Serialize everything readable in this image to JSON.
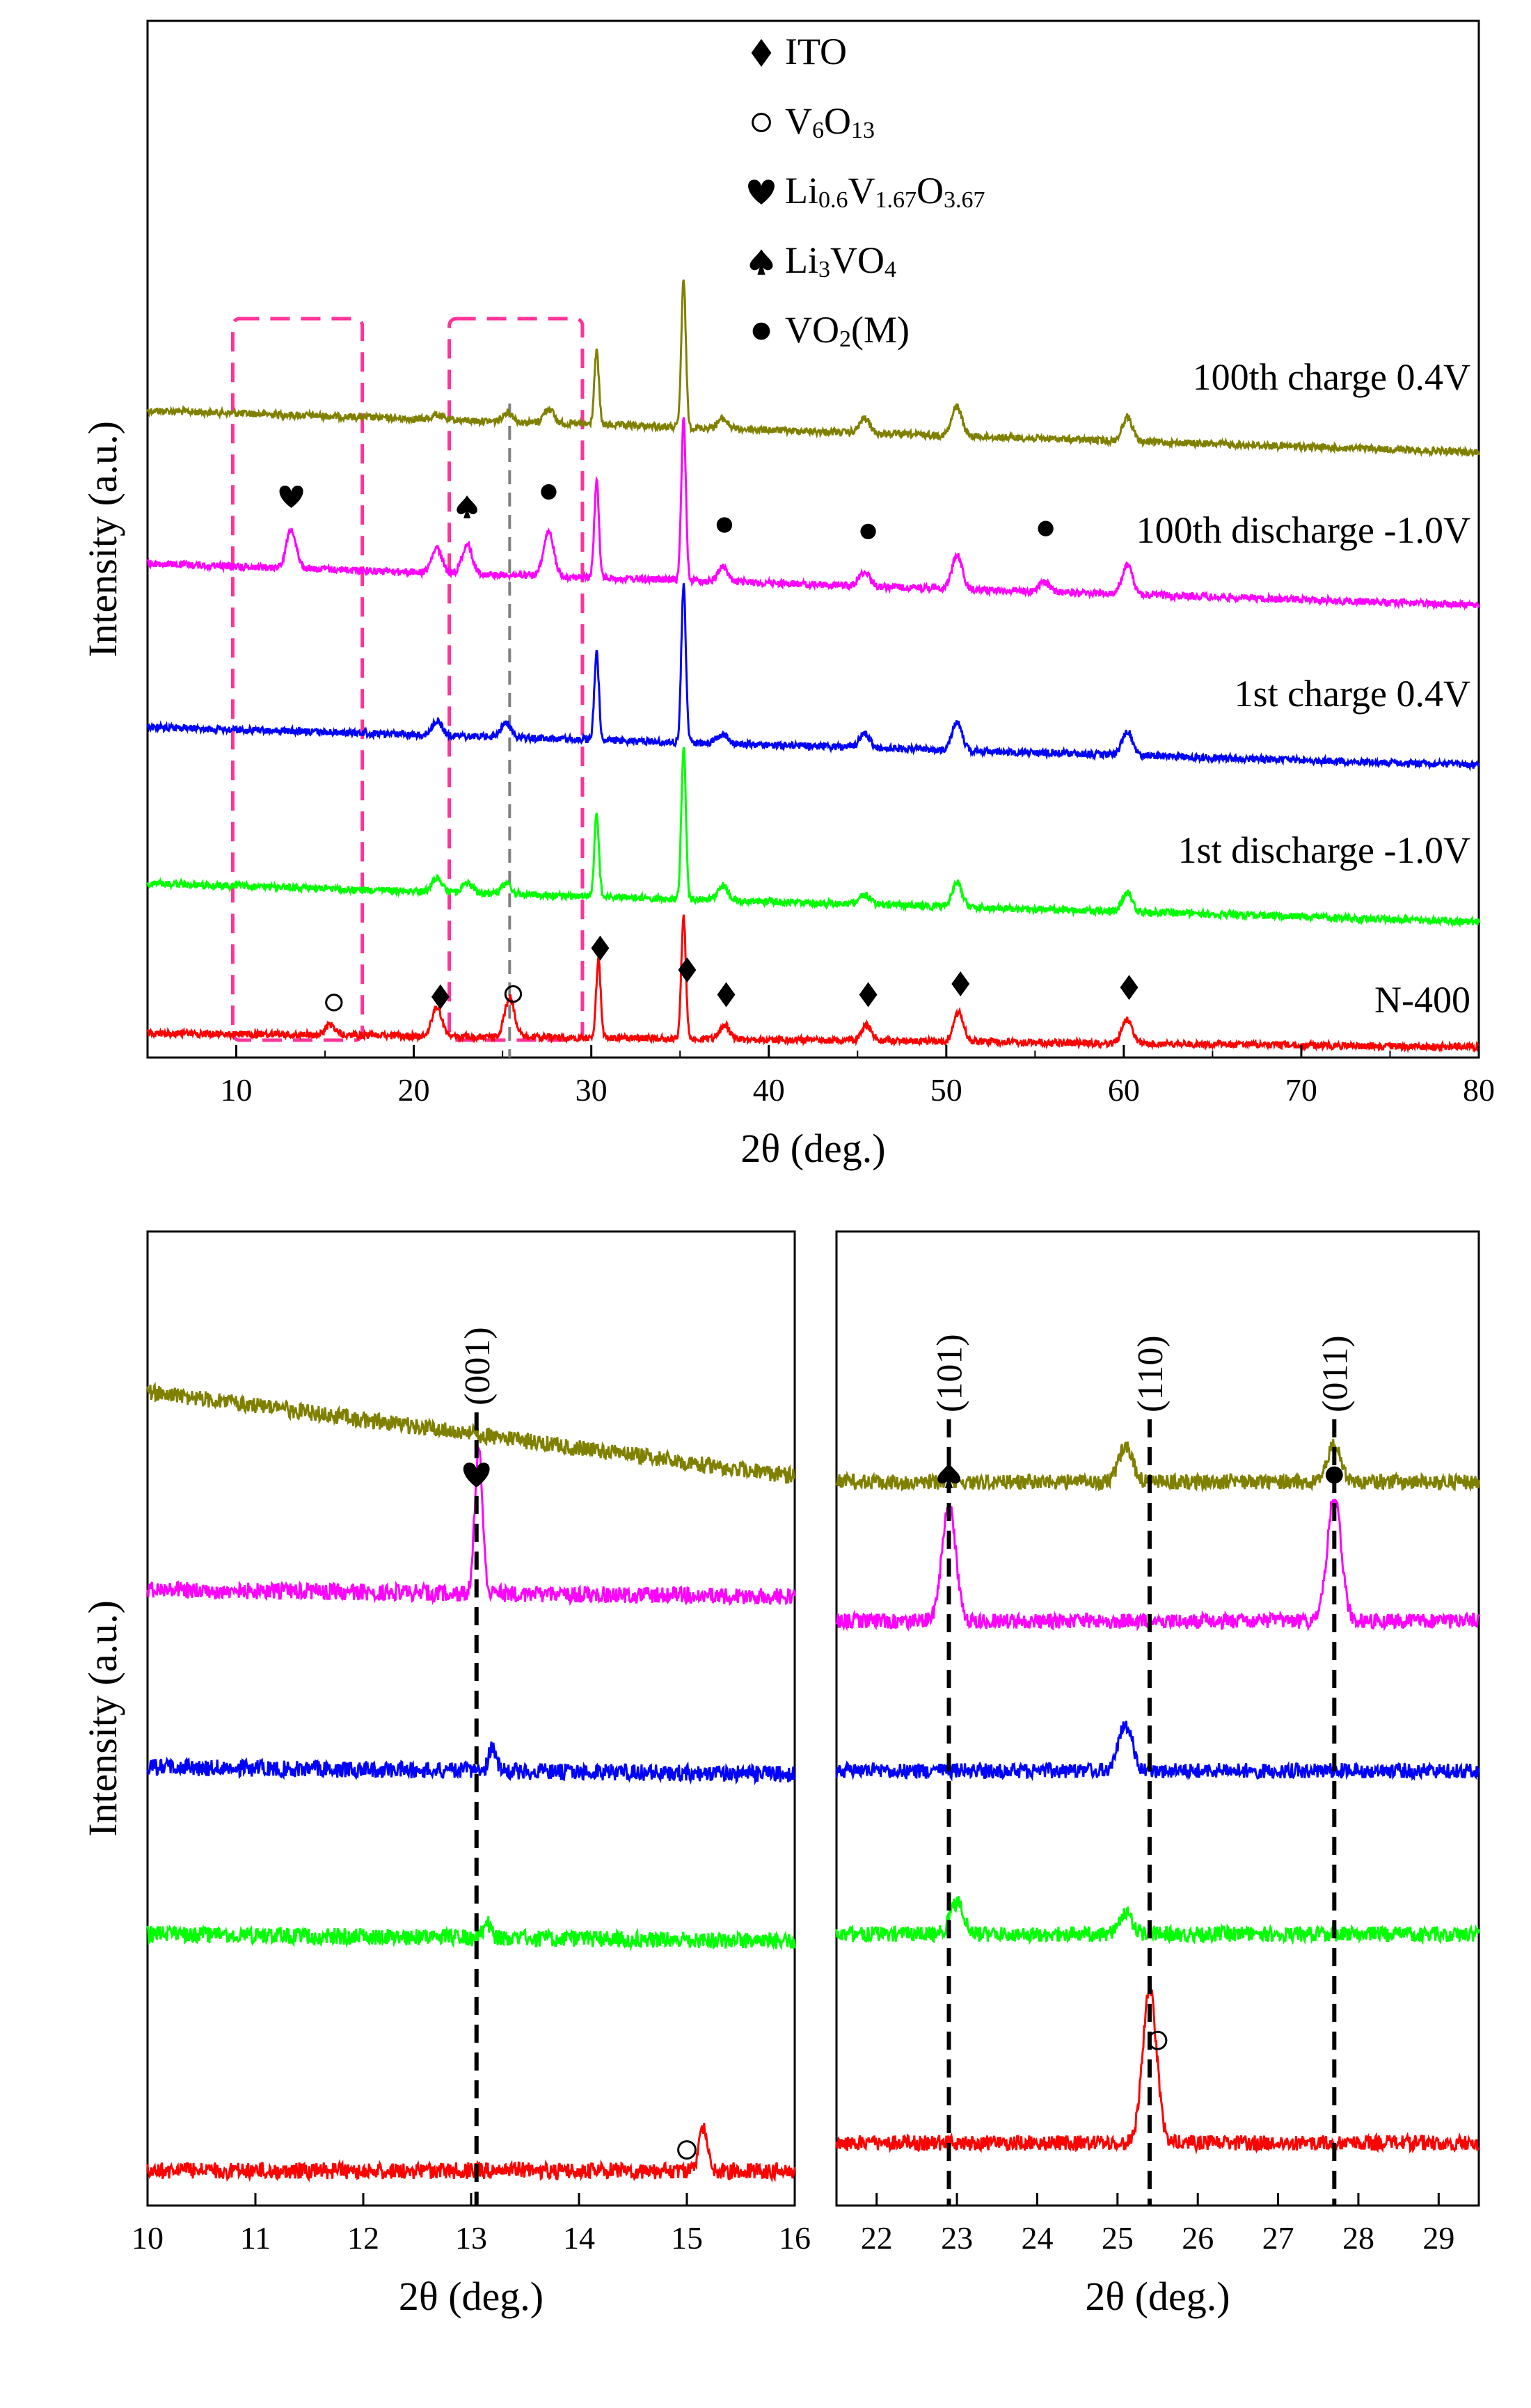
{
  "chart_data": [
    {
      "type": "line",
      "xlabel": "2θ (deg.)",
      "ylabel": "Intensity (a.u.)",
      "xlim": [
        5,
        80
      ],
      "xticks": [
        10,
        20,
        30,
        40,
        50,
        60,
        70,
        80
      ],
      "grid": false,
      "legend_position": "top-center",
      "legend": [
        {
          "marker": "diamond",
          "label_parts": [
            [
              "ITO",
              "n"
            ]
          ]
        },
        {
          "marker": "circle-open",
          "label_parts": [
            [
              "V",
              "n"
            ],
            [
              "6",
              "s"
            ],
            [
              "O",
              "n"
            ],
            [
              "13",
              "s"
            ]
          ]
        },
        {
          "marker": "heart",
          "label_parts": [
            [
              "Li",
              "n"
            ],
            [
              "0.6",
              "s"
            ],
            [
              "V",
              "n"
            ],
            [
              "1.67",
              "s"
            ],
            [
              "O",
              "n"
            ],
            [
              "3.67",
              "s"
            ]
          ]
        },
        {
          "marker": "spade",
          "label_parts": [
            [
              "Li",
              "n"
            ],
            [
              "3",
              "s"
            ],
            [
              "VO",
              "n"
            ],
            [
              "4",
              "s"
            ]
          ]
        },
        {
          "marker": "dot",
          "label_parts": [
            [
              "VO",
              "n"
            ],
            [
              "2",
              "s"
            ],
            [
              "(M)",
              "n"
            ]
          ]
        }
      ],
      "series": [
        {
          "name": "100th charge 0.4V",
          "color": "#808000",
          "peaks": [
            [
              21.3,
              0.1
            ],
            [
              25.3,
              0.2
            ],
            [
              27.6,
              0.3
            ],
            [
              30.3,
              1.5
            ],
            [
              35.2,
              3.0
            ],
            [
              37.4,
              0.2
            ],
            [
              45.4,
              0.3
            ],
            [
              50.6,
              0.6
            ],
            [
              60.2,
              0.5
            ]
          ]
        },
        {
          "name": "100th discharge -1.0V",
          "color": "#ff00ff",
          "peaks": [
            [
              13.1,
              0.8
            ],
            [
              21.3,
              0.5
            ],
            [
              23.0,
              0.6
            ],
            [
              27.6,
              0.9
            ],
            [
              30.3,
              2.0
            ],
            [
              35.2,
              3.3
            ],
            [
              37.4,
              0.3
            ],
            [
              45.4,
              0.3
            ],
            [
              50.6,
              0.7
            ],
            [
              55.5,
              0.2
            ],
            [
              60.2,
              0.6
            ]
          ]
        },
        {
          "name": "1st charge 0.4V",
          "color": "#0000ff",
          "peaks": [
            [
              21.3,
              0.3
            ],
            [
              25.2,
              0.3
            ],
            [
              30.3,
              1.8
            ],
            [
              35.2,
              3.2
            ],
            [
              37.4,
              0.2
            ],
            [
              45.4,
              0.3
            ],
            [
              50.6,
              0.6
            ],
            [
              60.2,
              0.5
            ]
          ]
        },
        {
          "name": "1st discharge -1.0V",
          "color": "#00ff00",
          "peaks": [
            [
              21.3,
              0.3
            ],
            [
              23.0,
              0.2
            ],
            [
              25.2,
              0.2
            ],
            [
              30.3,
              1.7
            ],
            [
              35.2,
              3.1
            ],
            [
              37.4,
              0.3
            ],
            [
              45.4,
              0.2
            ],
            [
              50.6,
              0.5
            ],
            [
              60.2,
              0.4
            ]
          ]
        },
        {
          "name": "N-400",
          "color": "#ff0000",
          "peaks": [
            [
              15.3,
              0.2
            ],
            [
              21.3,
              0.6
            ],
            [
              25.4,
              0.8
            ],
            [
              30.4,
              1.6
            ],
            [
              35.2,
              2.5
            ],
            [
              37.5,
              0.3
            ],
            [
              45.5,
              0.3
            ],
            [
              50.7,
              0.6
            ],
            [
              60.2,
              0.5
            ]
          ]
        }
      ],
      "annotations": [
        {
          "series": "100th discharge -1.0V",
          "marker": "heart",
          "x": 13.1
        },
        {
          "series": "100th discharge -1.0V",
          "marker": "spade",
          "x": 23.0
        },
        {
          "series": "100th discharge -1.0V",
          "marker": "dot",
          "x": 27.6
        },
        {
          "series": "100th discharge -1.0V",
          "marker": "dot",
          "x": 37.5
        },
        {
          "series": "100th discharge -1.0V",
          "marker": "dot",
          "x": 45.6
        },
        {
          "series": "100th discharge -1.0V",
          "marker": "dot",
          "x": 55.6
        },
        {
          "series": "N-400",
          "marker": "circle-open",
          "x": 15.5
        },
        {
          "series": "N-400",
          "marker": "diamond",
          "x": 21.5
        },
        {
          "series": "N-400",
          "marker": "circle-open",
          "x": 25.6
        },
        {
          "series": "N-400",
          "marker": "diamond",
          "x": 30.5
        },
        {
          "series": "N-400",
          "marker": "diamond",
          "x": 35.4
        },
        {
          "series": "N-400",
          "marker": "diamond",
          "x": 37.6
        },
        {
          "series": "N-400",
          "marker": "diamond",
          "x": 45.6
        },
        {
          "series": "N-400",
          "marker": "diamond",
          "x": 50.8
        },
        {
          "series": "N-400",
          "marker": "diamond",
          "x": 60.3
        }
      ],
      "highlight_boxes_x": [
        [
          9.8,
          17.1
        ],
        [
          22.0,
          29.5
        ]
      ],
      "reference_line_x": 25.4
    },
    {
      "type": "line",
      "xlabel": "2θ (deg.)",
      "ylabel": "Intensity (a.u.)",
      "xlim": [
        10,
        16
      ],
      "xticks": [
        10,
        11,
        12,
        13,
        14,
        15,
        16
      ],
      "grid": false,
      "reference_lines": [
        {
          "x": 13.05,
          "label": "(001)",
          "marker": "heart"
        }
      ],
      "series": [
        {
          "name": "100th charge 0.4V",
          "color": "#808000",
          "slope": -0.7,
          "peaks": []
        },
        {
          "name": "100th discharge -1.0V",
          "color": "#ff00ff",
          "peaks": [
            [
              13.07,
              3.0
            ]
          ]
        },
        {
          "name": "1st charge 0.4V",
          "color": "#0000ff",
          "peaks": [
            [
              13.2,
              0.5
            ]
          ]
        },
        {
          "name": "1st discharge -1.0V",
          "color": "#00ff00",
          "peaks": [
            [
              13.15,
              0.3
            ]
          ]
        },
        {
          "name": "N-400",
          "color": "#ff0000",
          "peaks": [
            [
              15.15,
              0.9
            ]
          ]
        }
      ],
      "annotations": [
        {
          "series": "N-400",
          "marker": "circle-open",
          "x": 15.0
        }
      ]
    },
    {
      "type": "line",
      "xlabel": "2θ (deg.)",
      "xlim": [
        21.5,
        29.5
      ],
      "xticks": [
        22,
        23,
        24,
        25,
        26,
        27,
        28,
        29
      ],
      "grid": false,
      "reference_lines": [
        {
          "x": 22.9,
          "label": "(101)",
          "marker": "spade"
        },
        {
          "x": 25.4,
          "label": "(110)",
          "marker": ""
        },
        {
          "x": 27.7,
          "label": "(011)",
          "marker": "dot"
        }
      ],
      "series": [
        {
          "name": "100th charge 0.4V",
          "color": "#808000",
          "peaks": [
            [
              25.1,
              0.7
            ],
            [
              27.7,
              0.7
            ]
          ]
        },
        {
          "name": "100th discharge -1.0V",
          "color": "#ff00ff",
          "peaks": [
            [
              22.9,
              2.2
            ],
            [
              27.7,
              2.4
            ]
          ]
        },
        {
          "name": "1st charge 0.4V",
          "color": "#0000ff",
          "peaks": [
            [
              25.1,
              0.9
            ]
          ]
        },
        {
          "name": "1st discharge -1.0V",
          "color": "#00ff00",
          "peaks": [
            [
              23.0,
              0.6
            ],
            [
              25.1,
              0.4
            ]
          ]
        },
        {
          "name": "N-400",
          "color": "#ff0000",
          "peaks": [
            [
              25.4,
              3.0
            ]
          ]
        }
      ],
      "annotations": [
        {
          "series": "N-400",
          "marker": "circle-open",
          "x": 25.5
        }
      ]
    }
  ]
}
